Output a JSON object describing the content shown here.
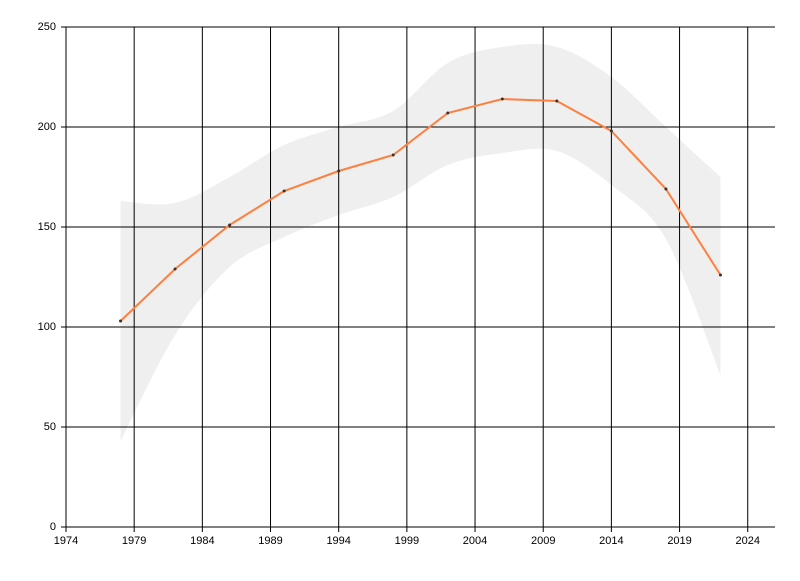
{
  "chart_data": {
    "type": "line",
    "x": [
      1978,
      1982,
      1986,
      1990,
      1994,
      1998,
      2002,
      2006,
      2010,
      2014,
      2018,
      2022
    ],
    "series": [
      {
        "color": "#ff7f3f",
        "values": [
          103,
          129,
          151,
          168,
          178,
          186,
          207,
          214,
          213,
          198,
          169,
          126
        ]
      }
    ],
    "band": {
      "color": "#efefef",
      "upper": [
        163,
        162,
        175,
        191,
        200,
        208,
        232,
        240,
        240,
        225,
        200,
        175
      ],
      "lower": [
        43,
        96,
        130,
        145,
        156,
        165,
        181,
        187,
        188,
        171,
        144,
        76
      ]
    },
    "marker_color": "#333333",
    "xlim": [
      1974,
      2026
    ],
    "xticks": [
      1974,
      1979,
      1984,
      1989,
      1994,
      1999,
      2004,
      2009,
      2014,
      2019,
      2024
    ],
    "ylim": [
      0,
      250
    ],
    "yticks": [
      0,
      50,
      100,
      150,
      200,
      250
    ],
    "grid": true
  }
}
